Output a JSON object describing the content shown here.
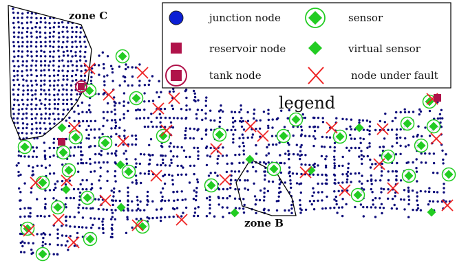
{
  "zones": [
    {
      "id": "C",
      "label": "zone C"
    },
    {
      "id": "B",
      "label": "zone B"
    }
  ],
  "legend_title": "legend",
  "legend": [
    {
      "key": "junction",
      "label": "junction node",
      "symbol": "circle",
      "color": "#0b1fd4"
    },
    {
      "key": "sensor",
      "label": "sensor",
      "symbol": "circled-diamond",
      "color": "#22cc22"
    },
    {
      "key": "reservoir",
      "label": "reservoir node",
      "symbol": "square",
      "color": "#b0124a"
    },
    {
      "key": "virtual",
      "label": "virtual sensor",
      "symbol": "diamond",
      "color": "#22cc22"
    },
    {
      "key": "tank",
      "label": "tank node",
      "symbol": "circled-square",
      "color": "#b0124a"
    },
    {
      "key": "fault",
      "label": "node under fault",
      "symbol": "cross",
      "color": "#ee2222"
    }
  ],
  "colors": {
    "network_node": "#0c0c7a",
    "sensor": "#22cc22",
    "reservoir": "#b0124a",
    "fault": "#ee2222",
    "outline": "#000000"
  }
}
